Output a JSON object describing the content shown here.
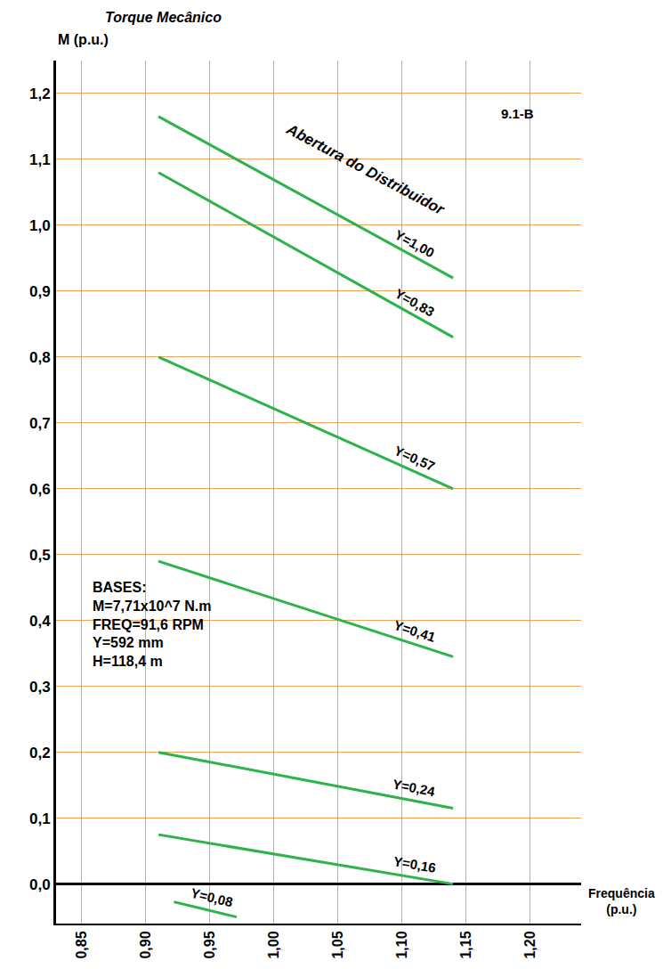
{
  "chart_data": {
    "type": "line",
    "y_label": "Torque Mecânico\nM (p.u.)",
    "x_label": "Frequência\n(p.u.)",
    "corner_label": "9.1-B",
    "curve_family_label": "Abertura do Distribuidor",
    "bases": [
      "BASES:",
      "M=7,71x10^7 N.m",
      "FREQ=91,6 RPM",
      "Y=592 mm",
      "H=118,4 m"
    ],
    "xlim": [
      0.83,
      1.24
    ],
    "ylim": [
      -0.06,
      1.25
    ],
    "xticks": [
      {
        "value": 0.85,
        "label": "0,85"
      },
      {
        "value": 0.9,
        "label": "0,90"
      },
      {
        "value": 0.95,
        "label": "0,95"
      },
      {
        "value": 1.0,
        "label": "1,00"
      },
      {
        "value": 1.05,
        "label": "1,05"
      },
      {
        "value": 1.1,
        "label": "1,10"
      },
      {
        "value": 1.15,
        "label": "1,15"
      },
      {
        "value": 1.2,
        "label": "1,20"
      }
    ],
    "yticks": [
      {
        "value": 0.0,
        "label": "0,0"
      },
      {
        "value": 0.1,
        "label": "0,1"
      },
      {
        "value": 0.2,
        "label": "0,2"
      },
      {
        "value": 0.3,
        "label": "0,3"
      },
      {
        "value": 0.4,
        "label": "0,4"
      },
      {
        "value": 0.5,
        "label": "0,5"
      },
      {
        "value": 0.6,
        "label": "0,6"
      },
      {
        "value": 0.7,
        "label": "0,7"
      },
      {
        "value": 0.8,
        "label": "0,8"
      },
      {
        "value": 0.9,
        "label": "0,9"
      },
      {
        "value": 1.0,
        "label": "1,0"
      },
      {
        "value": 1.1,
        "label": "1,1"
      },
      {
        "value": 1.2,
        "label": "1,2"
      }
    ],
    "grid": true,
    "line_style": "solid",
    "series": [
      {
        "name": "Y=1,00",
        "color": "#2db34a",
        "x": [
          0.91,
          1.14
        ],
        "values": [
          1.165,
          0.92
        ]
      },
      {
        "name": "Y=0,83",
        "color": "#2db34a",
        "x": [
          0.91,
          1.14
        ],
        "values": [
          1.08,
          0.83
        ]
      },
      {
        "name": "Y=0,57",
        "color": "#2db34a",
        "x": [
          0.91,
          1.14
        ],
        "values": [
          0.8,
          0.6
        ]
      },
      {
        "name": "Y=0,41",
        "color": "#2db34a",
        "x": [
          0.91,
          1.14
        ],
        "values": [
          0.49,
          0.345
        ]
      },
      {
        "name": "Y=0,24",
        "color": "#2db34a",
        "x": [
          0.91,
          1.14
        ],
        "values": [
          0.2,
          0.115
        ]
      },
      {
        "name": "Y=0,16",
        "color": "#2db34a",
        "x": [
          0.91,
          1.14
        ],
        "values": [
          0.075,
          0.0
        ]
      },
      {
        "name": "Y=0,08",
        "color": "#2db34a",
        "x": [
          0.922,
          0.971
        ],
        "values": [
          -0.027,
          -0.05
        ]
      }
    ]
  }
}
